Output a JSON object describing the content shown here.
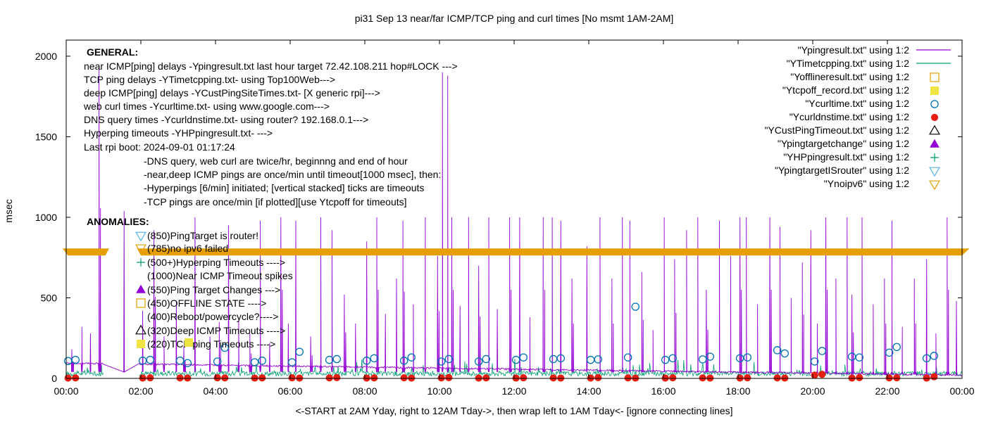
{
  "chart_data": {
    "type": "line",
    "title": "pi31 Sep 13  near/far ICMP/TCP ping and curl times [No msmt 1AM-2AM]",
    "xlabel": "<-START at 2AM Yday, right to 12AM Tday->, then wrap left to 1AM Tday<- [ignore connecting lines]",
    "ylabel": "msec",
    "x_unit": "hours",
    "xlim": [
      0,
      24
    ],
    "ylim": [
      0,
      2100
    ],
    "x_tick_labels": [
      "00:00",
      "02:00",
      "04:00",
      "06:00",
      "08:00",
      "10:00",
      "12:00",
      "14:00",
      "16:00",
      "18:00",
      "20:00",
      "22:00",
      "00:00"
    ],
    "y_tick_labels": [
      "0",
      "500",
      "1000",
      "1500",
      "2000"
    ],
    "y_ticks": [
      0,
      500,
      1000,
      1500,
      2000
    ],
    "grid": false,
    "legend_position": "top-right",
    "legend": [
      {
        "label": "\"Ypingresult.txt\" using 1:2",
        "marker": "line",
        "color": "#9400d3"
      },
      {
        "label": "\"YTimetcpping.txt\" using 1:2",
        "marker": "line",
        "color": "#009e73"
      },
      {
        "label": "\"Yofflineresult.txt\" using 1:2",
        "marker": "open-square",
        "color": "#e69f00"
      },
      {
        "label": "\"Ytcpoff_record.txt\" using 1:2",
        "marker": "filled-square",
        "color": "#f0e442"
      },
      {
        "label": "\"Ycurltime.txt\" using 1:2",
        "marker": "open-circle",
        "color": "#0072b2"
      },
      {
        "label": "\"Ycurldnstime.txt\" using 1:2",
        "marker": "filled-circle",
        "color": "#e51e10"
      },
      {
        "label": "\"YCustPingTimeout.txt\" using 1:2",
        "marker": "open-triangle",
        "color": "#000000"
      },
      {
        "label": "\"Ypingtargetchange\" using 1:2",
        "marker": "filled-triangle",
        "color": "#9400d3"
      },
      {
        "label": "\"YHPpingresult.txt\" using 1:2",
        "marker": "plus",
        "color": "#009e73"
      },
      {
        "label": "\"YpingtargetISrouter\" using 1:2",
        "marker": "open-triangle-down",
        "color": "#56b4e9"
      },
      {
        "label": "\"Ynoipv6\" using 1:2",
        "marker": "open-triangle-down",
        "color": "#e69f00"
      }
    ],
    "general_text": [
      "GENERAL:",
      "near ICMP[ping] delays -Ypingresult.txt last hour target 72.42.108.211 hop#LOCK --->",
      "TCP ping delays -YTimetcpping.txt- using Top100Web--->",
      "deep ICMP[ping] delays -YCustPingSiteTimes.txt- [X generic rpi]--->",
      "web curl times -Ycurltime.txt- using www.google.com--->",
      "DNS query times -Ycurldnstime.txt- using router? 192.168.0.1--->",
      "Hyperping timeouts -YHPpingresult.txt- --->",
      "Last rpi boot: 2024-09-01 01:17:24",
      "-DNS query, web curl are twice/hr, beginnng and end of hour",
      "-near,deep ICMP pings are once/min until timeout[1000 msec], then:",
      "  -Hyperpings [6/min] initiated; [vertical stacked] ticks are timeouts",
      "-TCP pings are once/min [if plotted][use Ytcpoff for timeouts]"
    ],
    "anomalies_title": "ANOMALIES:",
    "anomalies": [
      {
        "text": "(850)PingTarget is router!",
        "marker": "open-triangle-down",
        "color": "#56b4e9",
        "y": 850
      },
      {
        "text": "(785)no ipv6 failed",
        "marker": "open-triangle-down",
        "color": "#e69f00",
        "y": 785
      },
      {
        "text": "(500+)Hyperping Timeouts ---->",
        "marker": "plus",
        "color": "#009e73",
        "y": 500
      },
      {
        "text": "(1000)Near ICMP Timeout spikes",
        "marker": "none",
        "color": "#9400d3",
        "y": 1000
      },
      {
        "text": "(550)Ping Target Changes --->",
        "marker": "filled-triangle",
        "color": "#9400d3",
        "y": 550
      },
      {
        "text": "(450)OFFLINE STATE ---->",
        "marker": "open-square",
        "color": "#e69f00",
        "y": 450
      },
      {
        "text": "(400)Reboot/powercycle?---->",
        "marker": "none",
        "color": "#000000",
        "y": 400
      },
      {
        "text": "(320)Deep ICMP Timeouts ---->",
        "marker": "open-triangle",
        "color": "#000000",
        "y": 320
      },
      {
        "text": "(220)TCP ping Timeouts ---->",
        "marker": "filled-square",
        "color": "#f0e442",
        "y": 220
      }
    ],
    "series": [
      {
        "name": "\"Ycurltime.txt\" using 1:2",
        "marker": "open-circle",
        "color": "#0072b2",
        "x": [
          0.05,
          0.25,
          2.05,
          2.25,
          3.05,
          3.25,
          4.05,
          4.25,
          5.05,
          5.25,
          6.05,
          6.25,
          7.05,
          7.25,
          8.05,
          8.25,
          9.05,
          9.25,
          10.05,
          10.25,
          11.05,
          11.25,
          12.05,
          12.25,
          13.05,
          13.25,
          14.05,
          14.25,
          15.05,
          15.25,
          16.05,
          16.25,
          17.05,
          17.25,
          18.05,
          18.25,
          19.05,
          19.25,
          20.05,
          20.25,
          21.05,
          21.25,
          22.05,
          22.25,
          23.05,
          23.25
        ],
        "y": [
          108,
          115,
          110,
          115,
          110,
          95,
          105,
          190,
          100,
          110,
          100,
          165,
          115,
          120,
          110,
          125,
          110,
          130,
          105,
          120,
          105,
          120,
          115,
          130,
          120,
          125,
          115,
          118,
          130,
          445,
          115,
          125,
          118,
          135,
          125,
          130,
          175,
          155,
          105,
          170,
          135,
          130,
          160,
          195,
          125,
          140
        ]
      },
      {
        "name": "\"Ycurldnstime.txt\" using 1:2",
        "marker": "filled-circle",
        "color": "#e51e10",
        "x": [
          0.05,
          0.25,
          2.05,
          2.25,
          3.05,
          3.25,
          4.05,
          4.25,
          5.05,
          5.25,
          6.05,
          6.25,
          7.05,
          7.25,
          8.05,
          8.25,
          9.05,
          9.25,
          10.05,
          10.25,
          11.05,
          11.25,
          12.05,
          12.25,
          13.05,
          13.25,
          14.05,
          14.25,
          15.05,
          15.25,
          16.05,
          16.25,
          17.05,
          17.25,
          18.05,
          18.25,
          19.05,
          19.25,
          20.05,
          20.25,
          21.05,
          21.25,
          22.05,
          22.25,
          23.05,
          23.25
        ],
        "y": [
          2,
          3,
          2,
          4,
          3,
          2,
          4,
          3,
          2,
          3,
          4,
          2,
          3,
          5,
          2,
          3,
          4,
          2,
          3,
          5,
          2,
          3,
          2,
          4,
          3,
          2,
          2,
          5,
          3,
          2,
          2,
          4,
          3,
          2,
          2,
          4,
          3,
          2,
          20,
          25,
          2,
          5,
          3,
          4,
          2,
          10
        ]
      },
      {
        "name": "\"Ypingresult.txt\" using 1:2",
        "marker": "line",
        "color": "#9400d3",
        "baseline_start": 95,
        "baseline_end": 20,
        "spike_x": [
          0.15,
          0.42,
          0.65,
          0.88,
          1.55,
          2.05,
          2.35,
          2.62,
          2.95,
          3.15,
          3.45,
          3.85,
          4.1,
          4.35,
          4.62,
          4.92,
          5.2,
          5.45,
          5.75,
          5.95,
          6.15,
          6.55,
          6.82,
          7.12,
          7.45,
          7.75,
          8.05,
          8.32,
          8.55,
          8.85,
          9.02,
          9.3,
          9.62,
          9.95,
          10.08,
          10.22,
          10.33,
          10.55,
          10.78,
          11.05,
          11.32,
          11.55,
          11.88,
          12.15,
          12.42,
          12.78,
          13.02,
          13.25,
          13.55,
          13.95,
          14.3,
          14.62,
          14.9,
          15.1,
          15.42,
          15.72,
          16.02,
          16.3,
          16.62,
          16.92,
          17.15,
          17.5,
          17.8,
          18.05,
          18.22,
          18.52,
          18.85,
          19.12,
          19.42,
          19.72,
          19.95,
          20.12,
          20.35,
          20.62,
          20.92,
          21.05,
          21.32,
          21.62,
          21.92,
          22.12,
          22.4,
          22.72,
          23.05,
          23.3,
          23.6,
          23.85
        ],
        "spike_y": [
          180,
          320,
          280,
          1920,
          1040,
          420,
          920,
          260,
          480,
          200,
          1000,
          260,
          350,
          950,
          360,
          280,
          980,
          220,
          1000,
          340,
          980,
          260,
          1000,
          920,
          520,
          340,
          850,
          1000,
          400,
          620,
          980,
          460,
          1000,
          760,
          1900,
          1880,
          1000,
          450,
          1000,
          700,
          1000,
          430,
          1000,
          1000,
          380,
          1000,
          1000,
          980,
          620,
          820,
          1000,
          620,
          1000,
          980,
          660,
          300,
          1000,
          740,
          920,
          1000,
          550,
          980,
          760,
          1000,
          1000,
          460,
          1000,
          940,
          500,
          720,
          920,
          340,
          1000,
          620,
          1000,
          520,
          1000,
          460,
          620,
          980,
          320,
          620,
          740,
          280,
          1000,
          480
        ]
      },
      {
        "name": "\"YTimetcpping.txt\" using 1:2",
        "marker": "line",
        "color": "#009e73",
        "baseline": 30
      }
    ]
  }
}
